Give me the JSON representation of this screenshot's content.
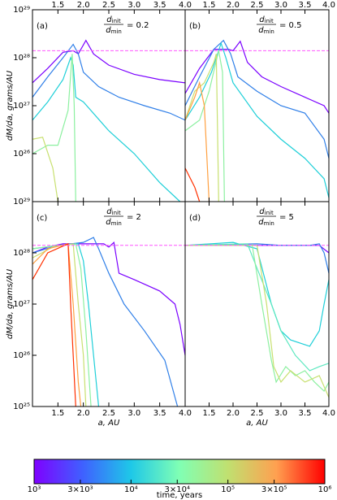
{
  "chart_data": [
    {
      "type": "line",
      "panel_label": "(a)",
      "ratio": {
        "numerator": "d",
        "numerator_sub": "init",
        "denominator": "d",
        "denominator_sub": "min"
      },
      "annotation": "= 0.2",
      "ylabel": "dM/da, grams/AU",
      "xlim": [
        1,
        4
      ],
      "ylim": [
        1e+25,
        1e+29
      ],
      "yscale": "log",
      "xticks": [
        1.5,
        {
          "value": 2,
          "label": "2.0"
        },
        2.5,
        {
          "value": 3,
          "label": "3.0"
        },
        3.5,
        {
          "value": 4,
          "label": "4.0"
        }
      ],
      "yticks": [
        {
          "value": 1e+26,
          "label": "10²⁶"
        },
        {
          "value": 1e+27,
          "label": "10²⁷"
        },
        {
          "value": 1e+28,
          "label": "10²⁸"
        },
        {
          "value": 1e+29,
          "label": "10²⁹"
        }
      ],
      "hline": {
        "value": 1.4e+28,
        "color": "#ff55ff"
      },
      "series": [
        {
          "color": "#7a00ff",
          "x": [
            1.0,
            1.3,
            1.6,
            1.8,
            1.9,
            2.05,
            2.2,
            2.5,
            3.0,
            3.5,
            4.0
          ],
          "values": [
            3e+27,
            6e+27,
            1.3e+28,
            1.4e+28,
            1.2e+28,
            2.3e+28,
            1.2e+28,
            7e+27,
            4.5e+27,
            3.5e+27,
            3e+27
          ]
        },
        {
          "color": "#2f7fe8",
          "x": [
            1.0,
            1.3,
            1.6,
            1.8,
            1.9,
            2.0,
            2.3,
            2.7,
            3.2,
            3.7,
            4.0
          ],
          "values": [
            1.5e+27,
            4e+27,
            1e+28,
            1.9e+28,
            1.2e+28,
            5e+27,
            2.5e+27,
            1.5e+27,
            1e+27,
            7e+26,
            5e+26
          ]
        },
        {
          "color": "#1ecfd8",
          "x": [
            1.0,
            1.3,
            1.6,
            1.75,
            1.8,
            1.85,
            2.0,
            2.5,
            3.0,
            3.5,
            3.9
          ],
          "values": [
            5e+26,
            1.2e+27,
            3.5e+27,
            1e+28,
            7e+27,
            1.5e+27,
            1.2e+27,
            3e+26,
            1e+26,
            2.5e+25,
            1e+25
          ]
        },
        {
          "color": "#8cf0a0",
          "x": [
            1.0,
            1.3,
            1.5,
            1.7,
            1.78,
            1.82,
            1.85
          ],
          "values": [
            1e+26,
            1.5e+26,
            1.5e+26,
            8e+26,
            1.2e+28,
            1e+27,
            1e+25
          ]
        },
        {
          "color": "#c8e070",
          "x": [
            1.0,
            1.2,
            1.4,
            1.5
          ],
          "values": [
            2e+26,
            2.2e+26,
            5e+25,
            1e+25
          ]
        }
      ]
    },
    {
      "type": "line",
      "panel_label": "(b)",
      "ratio": {
        "numerator": "d",
        "numerator_sub": "init",
        "denominator": "d",
        "denominator_sub": "min"
      },
      "annotation": "= 0.5",
      "xlim": [
        1,
        4
      ],
      "ylim": [
        1e+25,
        1e+29
      ],
      "yscale": "log",
      "xticks": [
        1.5,
        {
          "value": 2,
          "label": "2.0"
        },
        2.5,
        {
          "value": 3,
          "label": "3.0"
        },
        3.5,
        {
          "value": 4,
          "label": "4.0"
        }
      ],
      "hline": {
        "value": 1.4e+28,
        "color": "#ff55ff"
      },
      "series": [
        {
          "color": "#7a00ff",
          "x": [
            1.0,
            1.3,
            1.6,
            1.9,
            2.0,
            2.15,
            2.3,
            2.6,
            3.0,
            3.5,
            3.9,
            4.0
          ],
          "values": [
            1.8e+27,
            6e+27,
            1.5e+28,
            1.5e+28,
            1.4e+28,
            2.2e+28,
            8e+27,
            4e+27,
            2.5e+27,
            1.5e+27,
            1e+27,
            7e+26
          ]
        },
        {
          "color": "#2f7fe8",
          "x": [
            1.0,
            1.3,
            1.6,
            1.8,
            1.95,
            2.1,
            2.5,
            3.0,
            3.5,
            3.9,
            4.0
          ],
          "values": [
            1e+27,
            4e+27,
            1.5e+28,
            2.3e+28,
            1.2e+28,
            4e+27,
            2e+27,
            1e+27,
            7e+26,
            2e+26,
            8e+25
          ]
        },
        {
          "color": "#1ecfd8",
          "x": [
            1.0,
            1.3,
            1.55,
            1.75,
            1.85,
            2.0,
            2.5,
            3.0,
            3.5,
            3.9,
            4.0
          ],
          "values": [
            5e+26,
            1.5e+27,
            5e+27,
            2e+28,
            1e+28,
            3e+27,
            6e+26,
            2e+26,
            8e+25,
            3e+25,
            1.2e+25
          ]
        },
        {
          "color": "#8cf0a0",
          "x": [
            1.0,
            1.3,
            1.5,
            1.7,
            1.78,
            1.82
          ],
          "values": [
            3e+26,
            5e+26,
            2e+27,
            1.4e+28,
            5e+27,
            1e+25
          ]
        },
        {
          "color": "#c8e070",
          "x": [
            1.0,
            1.2,
            1.4,
            1.6,
            1.65,
            1.7
          ],
          "values": [
            5e+26,
            2e+27,
            3e+27,
            8e+27,
            1.2e+28,
            1e+25
          ]
        },
        {
          "color": "#ffa040",
          "x": [
            1.0,
            1.2,
            1.3,
            1.4,
            1.5
          ],
          "values": [
            5e+26,
            1.5e+27,
            3e+27,
            1e+27,
            1e+25
          ]
        },
        {
          "color": "#ff3000",
          "x": [
            1.0,
            1.2,
            1.3
          ],
          "values": [
            5e+25,
            2e+25,
            1e+25
          ]
        }
      ]
    },
    {
      "type": "line",
      "panel_label": "(c)",
      "ratio": {
        "numerator": "d",
        "numerator_sub": "init",
        "denominator": "d",
        "denominator_sub": "min"
      },
      "annotation": "= 2",
      "ylabel": "dM/da, grams/AU",
      "xlabel": "a, AU",
      "xlim": [
        1,
        4
      ],
      "ylim": [
        1e+25,
        1e+29
      ],
      "yscale": "log",
      "xticks": [
        1.5,
        {
          "value": 2,
          "label": "2.0"
        },
        2.5,
        {
          "value": 3,
          "label": "3.0"
        },
        3.5,
        {
          "value": 4,
          "label": "4.0"
        }
      ],
      "yticks": [
        {
          "value": 1e+25,
          "label": "10²⁵"
        },
        {
          "value": 1e+26,
          "label": "10²⁶"
        },
        {
          "value": 1e+27,
          "label": "10²⁷"
        },
        {
          "value": 1e+28,
          "label": "10²⁸"
        },
        {
          "value": 1e+29,
          "label": "10²⁹"
        }
      ],
      "hline": {
        "value": 1.4e+28,
        "color": "#ff55ff"
      },
      "series": [
        {
          "color": "#7a00ff",
          "x": [
            1.0,
            1.3,
            1.6,
            2.0,
            2.4,
            2.5,
            2.6,
            2.7,
            3.0,
            3.5,
            3.8,
            3.9,
            4.0
          ],
          "values": [
            1e+28,
            1.3e+28,
            1.5e+28,
            1.5e+28,
            1.5e+28,
            1.3e+28,
            1.6e+28,
            4e+27,
            3e+27,
            1.8e+27,
            1e+27,
            4e+26,
            1e+26
          ]
        },
        {
          "color": "#2f7fe8",
          "x": [
            1.0,
            1.5,
            2.0,
            2.2,
            2.3,
            2.5,
            2.8,
            3.2,
            3.6,
            3.85
          ],
          "values": [
            1e+28,
            1.4e+28,
            1.6e+28,
            2e+28,
            1.2e+28,
            4e+27,
            1e+27,
            3e+26,
            8e+25,
            1e+25
          ]
        },
        {
          "color": "#1ecfd8",
          "x": [
            1.0,
            1.5,
            1.9,
            2.0,
            2.1,
            2.2,
            2.3
          ],
          "values": [
            1.2e+28,
            1.4e+28,
            1.5e+28,
            7e+27,
            1e+27,
            1e+26,
            1e+25
          ]
        },
        {
          "color": "#8cf0a0",
          "x": [
            1.0,
            1.5,
            1.85,
            1.95,
            2.05,
            2.15
          ],
          "values": [
            1.2e+28,
            1.4e+28,
            1.5e+28,
            5e+27,
            3e+26,
            1e+25
          ]
        },
        {
          "color": "#c8e070",
          "x": [
            1.0,
            1.4,
            1.8,
            1.9,
            2.0,
            2.05
          ],
          "values": [
            8e+27,
            1.3e+28,
            1.5e+28,
            1e+27,
            1e+26,
            1e+25
          ]
        },
        {
          "color": "#ffa040",
          "x": [
            1.0,
            1.3,
            1.7,
            1.8,
            1.9,
            1.95
          ],
          "values": [
            6e+27,
            1.2e+28,
            1.5e+28,
            1e+27,
            3e+25,
            1e+25
          ]
        },
        {
          "color": "#ff3000",
          "x": [
            1.0,
            1.3,
            1.7,
            1.75,
            1.8,
            1.85
          ],
          "values": [
            3e+27,
            1e+28,
            1.5e+28,
            1e+27,
            1e+26,
            1e+25
          ]
        }
      ]
    },
    {
      "type": "line",
      "panel_label": "(d)",
      "ratio": {
        "numerator": "d",
        "numerator_sub": "init",
        "denominator": "d",
        "denominator_sub": "min"
      },
      "annotation": "= 5",
      "xlabel": "a, AU",
      "xlim": [
        1,
        4
      ],
      "ylim": [
        1e+25,
        1e+29
      ],
      "yscale": "log",
      "xticks": [
        1.5,
        {
          "value": 2,
          "label": "2.0"
        },
        2.5,
        {
          "value": 3,
          "label": "3.0"
        },
        3.5,
        {
          "value": 4,
          "label": "4.0"
        }
      ],
      "hline": {
        "value": 1.4e+28,
        "color": "#ff55ff"
      },
      "series": [
        {
          "color": "#7a00ff",
          "x": [
            1.0,
            3.0,
            3.8,
            4.0
          ],
          "values": [
            1.4e+28,
            1.4e+28,
            1.4e+28,
            1e+28
          ]
        },
        {
          "color": "#2f7fe8",
          "x": [
            1.0,
            2.5,
            3.0,
            3.6,
            3.8,
            3.9,
            4.0
          ],
          "values": [
            1.4e+28,
            1.5e+28,
            1.4e+28,
            1.4e+28,
            1.5e+28,
            1e+28,
            4e+27
          ]
        },
        {
          "color": "#1ecfd8",
          "x": [
            1.0,
            2.0,
            2.5,
            2.8,
            3.0,
            3.2,
            3.6,
            3.8,
            3.9,
            4.0
          ],
          "values": [
            1.4e+28,
            1.6e+28,
            1.2e+28,
            1e+27,
            3e+26,
            2e+26,
            1.5e+26,
            3e+26,
            1e+27,
            3e+27
          ]
        },
        {
          "color": "#5ee8c0",
          "x": [
            1.0,
            2.3,
            2.5,
            2.8,
            3.0,
            3.3,
            3.6,
            3.8,
            4.0
          ],
          "values": [
            1.4e+28,
            1.5e+28,
            5e+27,
            1e+27,
            3e+26,
            1e+26,
            5e+25,
            6e+25,
            7e+25
          ]
        },
        {
          "color": "#8cf0a0",
          "x": [
            1.0,
            2.4,
            2.6,
            2.8,
            2.9,
            3.1,
            3.3,
            3.5,
            3.7,
            3.9,
            4.0
          ],
          "values": [
            1.4e+28,
            1.4e+28,
            1e+27,
            8e+25,
            3e+25,
            6e+25,
            4e+25,
            5e+25,
            3e+25,
            2e+25,
            3e+25
          ]
        },
        {
          "color": "#c8e070",
          "x": [
            1.0,
            2.5,
            2.7,
            2.85,
            3.0,
            3.2,
            3.5,
            3.8,
            4.0
          ],
          "values": [
            1.4e+28,
            1.4e+28,
            1e+27,
            6e+25,
            3e+25,
            5e+25,
            3e+25,
            4e+25,
            1.5e+25
          ]
        }
      ]
    },
    {
      "type": "colorbar",
      "xlabel": "time, years",
      "xlim": [
        1000,
        1000000
      ],
      "xscale": "log",
      "colors": [
        "#7f00ff",
        "#3f60ff",
        "#1ec8e8",
        "#80ffb4",
        "#c0e070",
        "#ffa050",
        "#ff0000"
      ],
      "xticks": [
        {
          "value": 1000,
          "label": "10³"
        },
        {
          "value": 3000,
          "label": "3×10³"
        },
        {
          "value": 10000,
          "label": "10⁴"
        },
        {
          "value": 30000,
          "label": "3×10⁴"
        },
        {
          "value": 100000,
          "label": "10⁵"
        },
        {
          "value": 300000,
          "label": "3×10⁵"
        },
        {
          "value": 1000000,
          "label": "10⁶"
        }
      ]
    }
  ]
}
